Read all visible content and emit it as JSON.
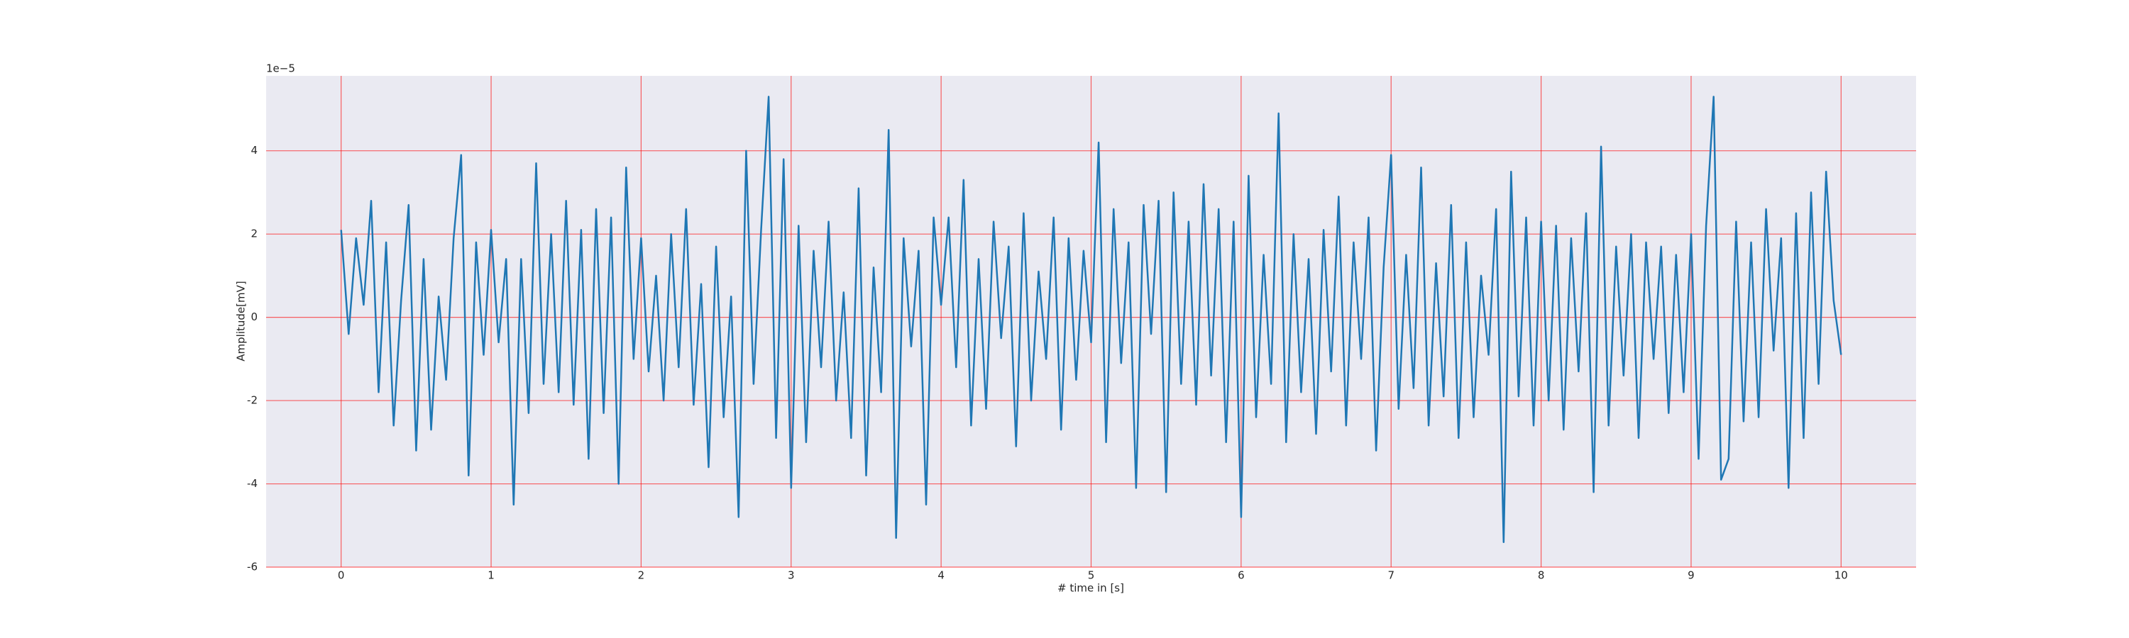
{
  "chart_data": {
    "type": "line",
    "xlabel": "# time in [s]",
    "ylabel": "Amplitude[mV]",
    "offset_text": "1e−5",
    "xlim": [
      -0.5,
      10.5
    ],
    "ylim": [
      -6,
      5.8
    ],
    "xticks": [
      0,
      1,
      2,
      3,
      4,
      5,
      6,
      7,
      8,
      9,
      10
    ],
    "yticks": [
      -6,
      -4,
      -2,
      0,
      2,
      4
    ],
    "grid": true,
    "grid_color": "#ff0000",
    "background": "#eaeaf2",
    "x": [
      0,
      0.05,
      0.1,
      0.15,
      0.2,
      0.25,
      0.3,
      0.35,
      0.4,
      0.45,
      0.5,
      0.55,
      0.6,
      0.65,
      0.7,
      0.75,
      0.8,
      0.85,
      0.9,
      0.95,
      1,
      1.05,
      1.1,
      1.15,
      1.2,
      1.25,
      1.3,
      1.35,
      1.4,
      1.45,
      1.5,
      1.55,
      1.6,
      1.65,
      1.7,
      1.75,
      1.8,
      1.85,
      1.9,
      1.95,
      2,
      2.05,
      2.1,
      2.15,
      2.2,
      2.25,
      2.3,
      2.35,
      2.4,
      2.45,
      2.5,
      2.55,
      2.6,
      2.65,
      2.7,
      2.75,
      2.8,
      2.85,
      2.9,
      2.95,
      3,
      3.05,
      3.1,
      3.15,
      3.2,
      3.25,
      3.3,
      3.35,
      3.4,
      3.45,
      3.5,
      3.55,
      3.6,
      3.65,
      3.7,
      3.75,
      3.8,
      3.85,
      3.9,
      3.95,
      4,
      4.05,
      4.1,
      4.15,
      4.2,
      4.25,
      4.3,
      4.35,
      4.4,
      4.45,
      4.5,
      4.55,
      4.6,
      4.65,
      4.7,
      4.75,
      4.8,
      4.85,
      4.9,
      4.95,
      5,
      5.05,
      5.1,
      5.15,
      5.2,
      5.25,
      5.3,
      5.35,
      5.4,
      5.45,
      5.5,
      5.55,
      5.6,
      5.65,
      5.7,
      5.75,
      5.8,
      5.85,
      5.9,
      5.95,
      6,
      6.05,
      6.1,
      6.15,
      6.2,
      6.25,
      6.3,
      6.35,
      6.4,
      6.45,
      6.5,
      6.55,
      6.6,
      6.65,
      6.7,
      6.75,
      6.8,
      6.85,
      6.9,
      6.95,
      7,
      7.05,
      7.1,
      7.15,
      7.2,
      7.25,
      7.3,
      7.35,
      7.4,
      7.45,
      7.5,
      7.55,
      7.6,
      7.65,
      7.7,
      7.75,
      7.8,
      7.85,
      7.9,
      7.95,
      8,
      8.05,
      8.1,
      8.15,
      8.2,
      8.25,
      8.3,
      8.35,
      8.4,
      8.45,
      8.5,
      8.55,
      8.6,
      8.65,
      8.7,
      8.75,
      8.8,
      8.85,
      8.9,
      8.95,
      9,
      9.05,
      9.1,
      9.15,
      9.2,
      9.25,
      9.3,
      9.35,
      9.4,
      9.45,
      9.5,
      9.55,
      9.6,
      9.65,
      9.7,
      9.75,
      9.8,
      9.85,
      9.9,
      9.95,
      10
    ],
    "series": [
      {
        "color": "#1f77b4",
        "values": [
          2.1,
          -0.4,
          1.9,
          0.3,
          2.8,
          -1.8,
          1.8,
          -2.6,
          0.4,
          2.7,
          -3.2,
          1.4,
          -2.7,
          0.5,
          -1.5,
          1.9,
          3.9,
          -3.8,
          1.8,
          -0.9,
          2.1,
          -0.6,
          1.4,
          -4.5,
          1.4,
          -2.3,
          3.7,
          -1.6,
          2.0,
          -1.8,
          2.8,
          -2.1,
          2.1,
          -3.4,
          2.6,
          -2.3,
          2.4,
          -4.0,
          3.6,
          -1.0,
          1.9,
          -1.3,
          1.0,
          -2.0,
          2.0,
          -1.2,
          2.6,
          -2.1,
          0.8,
          -3.6,
          1.7,
          -2.4,
          0.5,
          -4.8,
          4.0,
          -1.6,
          2.1,
          5.3,
          -2.9,
          3.8,
          -4.1,
          2.2,
          -3.0,
          1.6,
          -1.2,
          2.3,
          -2.0,
          0.6,
          -2.9,
          3.1,
          -3.8,
          1.2,
          -1.8,
          4.5,
          -5.3,
          1.9,
          -0.7,
          1.6,
          -4.5,
          2.4,
          0.3,
          2.4,
          -1.2,
          3.3,
          -2.6,
          1.4,
          -2.2,
          2.3,
          -0.5,
          1.7,
          -3.1,
          2.5,
          -2.0,
          1.1,
          -1.0,
          2.4,
          -2.7,
          1.9,
          -1.5,
          1.6,
          -0.6,
          4.2,
          -3.0,
          2.6,
          -1.1,
          1.8,
          -4.1,
          2.7,
          -0.4,
          2.8,
          -4.2,
          3.0,
          -1.6,
          2.3,
          -2.1,
          3.2,
          -1.4,
          2.6,
          -3.0,
          2.3,
          -4.8,
          3.4,
          -2.4,
          1.5,
          -1.6,
          4.9,
          -3.0,
          2.0,
          -1.8,
          1.4,
          -2.8,
          2.1,
          -1.3,
          2.9,
          -2.6,
          1.8,
          -1.0,
          2.4,
          -3.2,
          1.2,
          3.9,
          -2.2,
          1.5,
          -1.7,
          3.6,
          -2.6,
          1.3,
          -1.9,
          2.7,
          -2.9,
          1.8,
          -2.4,
          1.0,
          -0.9,
          2.6,
          -5.4,
          3.5,
          -1.9,
          2.4,
          -2.6,
          2.3,
          -2.0,
          2.2,
          -2.7,
          1.9,
          -1.3,
          2.5,
          -4.2,
          4.1,
          -2.6,
          1.7,
          -1.4,
          2.0,
          -2.9,
          1.8,
          -1.0,
          1.7,
          -2.3,
          1.5,
          -1.8,
          2.0,
          -3.4,
          2.2,
          5.3,
          -3.9,
          -3.4,
          2.3,
          -2.5,
          1.8,
          -2.4,
          2.6,
          -0.8,
          1.9,
          -4.1,
          2.5,
          -2.9,
          3.0,
          -1.6,
          3.5,
          0.4,
          -0.9
        ]
      }
    ]
  }
}
